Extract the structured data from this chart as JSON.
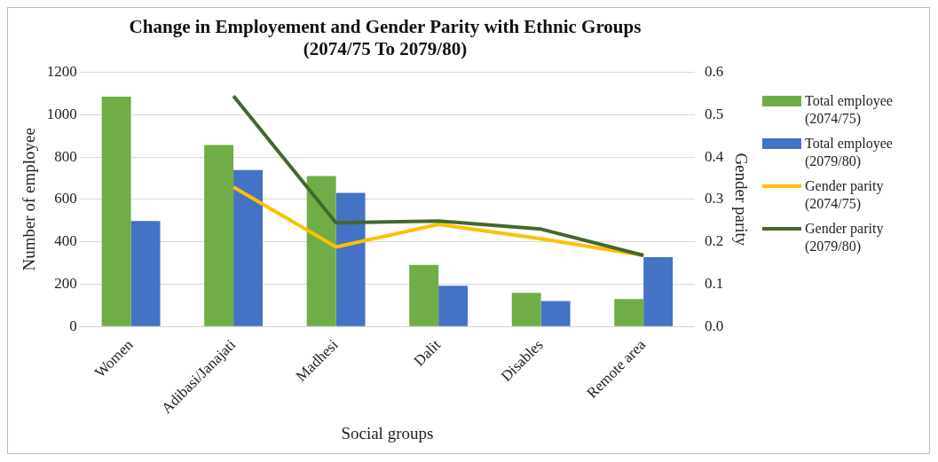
{
  "chart_data": {
    "type": "bar",
    "title": "Change in Employement and Gender Parity with Ethnic Groups",
    "subtitle": "(2074/75 To 2079/80)",
    "xlabel": "Social groups",
    "ylabel": "Number of employee",
    "y2label": "Gender parity",
    "categories": [
      "Women",
      "Adibasi/Janajati",
      "Madhesi",
      "Dalit",
      "Disables",
      "Remote area"
    ],
    "series": [
      {
        "name": "Total employee (2074/75)",
        "color": "#70ad47",
        "values": [
          1085,
          857,
          710,
          291,
          159,
          130
        ]
      },
      {
        "name": "Total employee (2079/80)",
        "color": "#4472c4",
        "values": [
          498,
          739,
          631,
          193,
          121,
          328
        ]
      },
      {
        "name": "Gender parity (2074/75)",
        "color": "#ffc000",
        "type": "line",
        "axis": "y2",
        "values": [
          null,
          0.329,
          0.188,
          0.241,
          0.207,
          0.168
        ]
      },
      {
        "name": "Gender parity (2079/80)",
        "color": "#43682b",
        "type": "line",
        "axis": "y2",
        "values": [
          null,
          0.544,
          0.245,
          0.249,
          0.23,
          0.168
        ]
      }
    ],
    "ylim": [
      0,
      1200
    ],
    "yticks": [
      0,
      200,
      400,
      600,
      800,
      1000,
      1200
    ],
    "y2lim": [
      0,
      0.6
    ],
    "y2ticks": [
      {
        "value": 0,
        "label": "0.0"
      },
      {
        "value": 0.1,
        "label": "0.1"
      },
      {
        "value": 0.2,
        "label": "0.2"
      },
      {
        "value": 0.3,
        "label": "0.3"
      },
      {
        "value": 0.4,
        "label": "0.4"
      },
      {
        "value": 0.5,
        "label": "0.5"
      },
      {
        "value": 0.6,
        "label": "0.6"
      }
    ],
    "grid": "y",
    "legend": "right",
    "marker": "none"
  }
}
